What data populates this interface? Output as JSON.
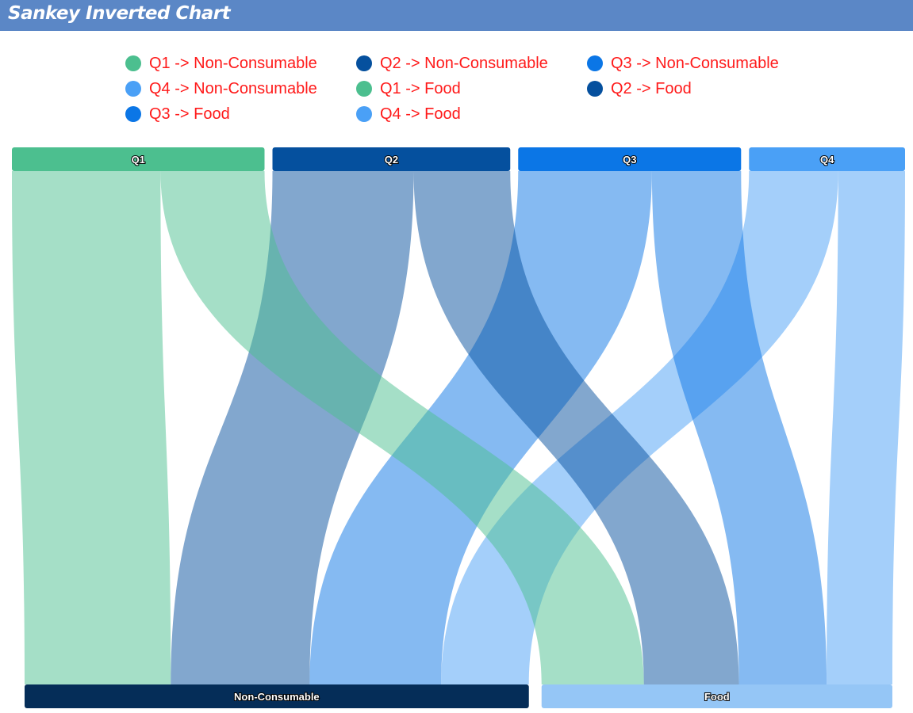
{
  "title": "Sankey Inverted Chart",
  "chart_data": {
    "type": "sankey",
    "title": "Sankey Inverted Chart",
    "orientation": "vertical",
    "sources": [
      {
        "name": "Q1",
        "color": "#4cbf8f"
      },
      {
        "name": "Q2",
        "color": "#05509e"
      },
      {
        "name": "Q3",
        "color": "#0b76e6"
      },
      {
        "name": "Q4",
        "color": "#4aa0f6"
      }
    ],
    "targets": [
      {
        "name": "Non-Consumable",
        "color": "#052d58"
      },
      {
        "name": "Food",
        "color": "#95c6f6"
      }
    ],
    "links": [
      {
        "label": "Q1 -> Non-Consumable",
        "source": "Q1",
        "target": "Non-Consumable",
        "value": 20,
        "color": "#4cbf8f"
      },
      {
        "label": "Q2 -> Non-Consumable",
        "source": "Q2",
        "target": "Non-Consumable",
        "value": 19,
        "color": "#05509e"
      },
      {
        "label": "Q3 -> Non-Consumable",
        "source": "Q3",
        "target": "Non-Consumable",
        "value": 18,
        "color": "#0b76e6"
      },
      {
        "label": "Q4 -> Non-Consumable",
        "source": "Q4",
        "target": "Non-Consumable",
        "value": 12,
        "color": "#4aa0f6"
      },
      {
        "label": "Q1 -> Food",
        "source": "Q1",
        "target": "Food",
        "value": 14,
        "color": "#4cbf8f"
      },
      {
        "label": "Q2 -> Food",
        "source": "Q2",
        "target": "Food",
        "value": 13,
        "color": "#05509e"
      },
      {
        "label": "Q3 -> Food",
        "source": "Q3",
        "target": "Food",
        "value": 12,
        "color": "#0b76e6"
      },
      {
        "label": "Q4 -> Food",
        "source": "Q4",
        "target": "Food",
        "value": 9,
        "color": "#4aa0f6"
      }
    ]
  }
}
